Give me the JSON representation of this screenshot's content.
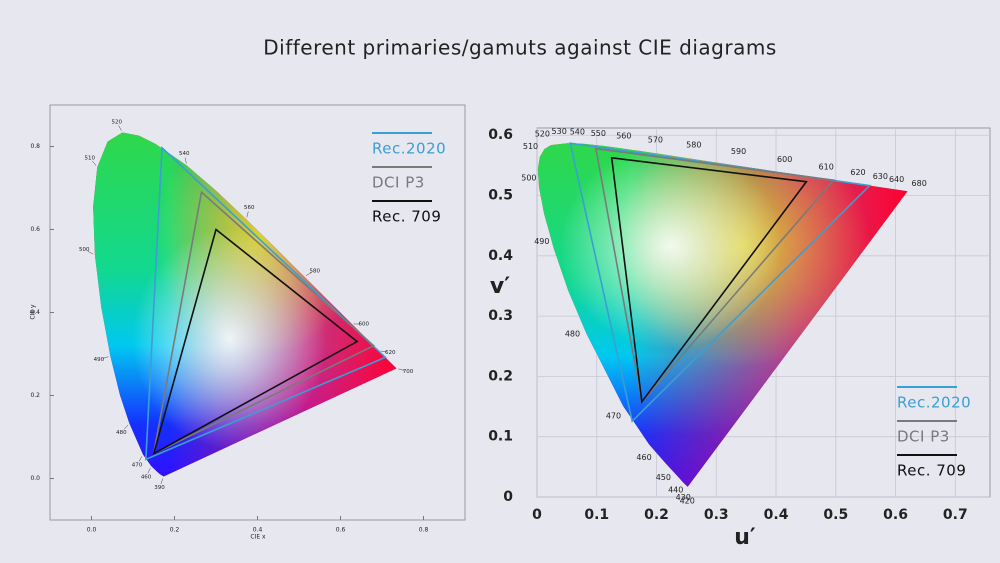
{
  "title": "Different primaries/gamuts against CIE diagrams",
  "chart_data": [
    {
      "type": "chromaticity",
      "x_label": "CIE x",
      "y_label": "CIE y",
      "xlim": [
        -0.1,
        0.9
      ],
      "ylim": [
        -0.1,
        0.9
      ],
      "xticks": [
        {
          "value": 0,
          "label": "0.0"
        },
        0.2,
        0.4,
        0.6,
        0.8
      ],
      "yticks": [
        {
          "value": 0,
          "label": "0.0"
        },
        0.2,
        0.4,
        0.6,
        0.8
      ],
      "grid": false,
      "legend": "upper right",
      "locus": {
        "labels": [
          390,
          null,
          null,
          460,
          470,
          480,
          null,
          490,
          null,
          500,
          null,
          510,
          null,
          520,
          null,
          null,
          540,
          null,
          560,
          null,
          580,
          600,
          620,
          700
        ],
        "x": [
          0.1738,
          0.1644,
          0.1566,
          0.144,
          0.1241,
          0.0913,
          0.0687,
          0.0454,
          0.0235,
          0.0082,
          0.0039,
          0.0139,
          0.0389,
          0.0743,
          0.1142,
          0.1547,
          0.2296,
          0.3016,
          0.3731,
          0.4441,
          0.5125,
          0.627,
          0.6915,
          0.7347
        ],
        "y": [
          0.0049,
          0.0109,
          0.0177,
          0.0297,
          0.0578,
          0.1327,
          0.2007,
          0.295,
          0.4127,
          0.5384,
          0.6548,
          0.7502,
          0.812,
          0.8338,
          0.8262,
          0.8059,
          0.7543,
          0.6923,
          0.6245,
          0.5547,
          0.4866,
          0.3725,
          0.3083,
          0.2653
        ]
      },
      "series": [
        {
          "name": "Rec.2020",
          "color": "#3a9fd4",
          "x": [
            0.708,
            0.17,
            0.131
          ],
          "y": [
            0.292,
            0.797,
            0.046
          ]
        },
        {
          "name": "DCI P3",
          "color": "#7a7a7a",
          "x": [
            0.68,
            0.265,
            0.15
          ],
          "y": [
            0.32,
            0.69,
            0.06
          ]
        },
        {
          "name": "Rec. 709",
          "color": "#111111",
          "x": [
            0.64,
            0.3,
            0.15
          ],
          "y": [
            0.33,
            0.6,
            0.06
          ]
        }
      ]
    },
    {
      "type": "chromaticity",
      "x_label": "u′",
      "y_label": "v′",
      "xlim": [
        0,
        0.758
      ],
      "ylim": [
        0,
        0.612
      ],
      "xticks": [
        0,
        0.1,
        0.2,
        0.3,
        0.4,
        0.5,
        0.6,
        0.7
      ],
      "yticks": [
        0,
        0.1,
        0.2,
        0.3,
        0.4,
        0.5,
        0.6
      ],
      "grid": true,
      "legend": "lower right",
      "locus": {
        "labels": [
          420,
          430,
          440,
          450,
          460,
          470,
          480,
          null,
          490,
          null,
          500,
          null,
          510,
          null,
          520,
          530,
          540,
          550,
          560,
          570,
          580,
          590,
          600,
          610,
          620,
          630,
          640,
          680
        ],
        "x": [
          0.2522,
          0.2461,
          0.2347,
          0.2161,
          0.1877,
          0.1441,
          0.0828,
          0.0521,
          0.0282,
          0.0119,
          0.0035,
          0.0014,
          0.0046,
          0.0123,
          0.0231,
          0.0501,
          0.0792,
          0.1127,
          0.1531,
          0.2026,
          0.2623,
          0.3315,
          0.4035,
          0.4692,
          0.5203,
          0.5565,
          0.583,
          0.6199
        ],
        "y": [
          0.0169,
          0.0226,
          0.035,
          0.0549,
          0.0871,
          0.151,
          0.2708,
          0.3427,
          0.4117,
          0.4698,
          0.5131,
          0.5432,
          0.5638,
          0.577,
          0.5837,
          0.5868,
          0.5856,
          0.5821,
          0.5766,
          0.5694,
          0.5604,
          0.5501,
          0.5393,
          0.5296,
          0.5219,
          0.5165,
          0.5125,
          0.507
        ]
      },
      "series": [
        {
          "name": "Rec.2020",
          "color": "#3a9fd4",
          "x": [
            0.5566,
            0.0556,
            0.1593
          ],
          "y": [
            0.5165,
            0.5868,
            0.1258
          ]
        },
        {
          "name": "DCI P3",
          "color": "#7a7a7a",
          "x": [
            0.4964,
            0.0986,
            0.1754
          ],
          "y": [
            0.5255,
            0.5777,
            0.1579
          ]
        },
        {
          "name": "Rec. 709",
          "color": "#111111",
          "x": [
            0.4507,
            0.125,
            0.1754
          ],
          "y": [
            0.5229,
            0.5625,
            0.1579
          ]
        }
      ]
    }
  ]
}
